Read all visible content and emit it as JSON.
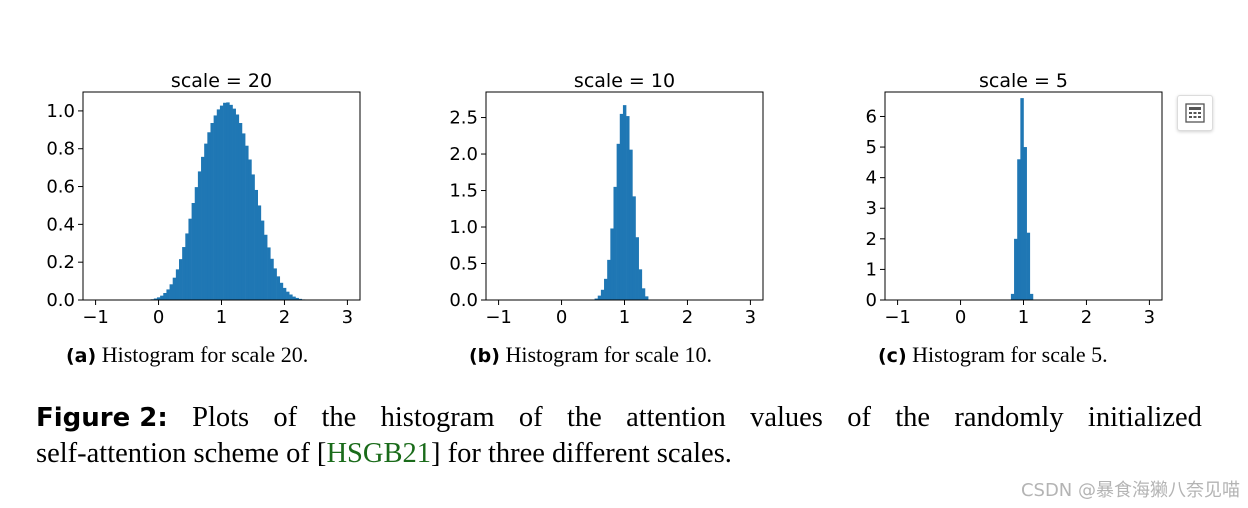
{
  "chart_data": [
    {
      "type": "bar",
      "title": "scale = 20",
      "xlim": [
        -1.2,
        3.2
      ],
      "ylim": [
        0,
        1.1
      ],
      "xticks": [
        -1,
        0,
        1,
        2,
        3
      ],
      "xtick_labels": [
        "−1",
        "0",
        "1",
        "2",
        "3"
      ],
      "yticks": [
        0,
        0.2,
        0.4,
        0.6,
        0.8,
        1.0
      ],
      "ytick_labels": [
        "0.0",
        "0.2",
        "0.4",
        "0.6",
        "0.8",
        "1.0"
      ],
      "x": [
        -0.1,
        -0.05,
        0.0,
        0.05,
        0.1,
        0.15,
        0.2,
        0.25,
        0.3,
        0.35,
        0.4,
        0.45,
        0.5,
        0.55,
        0.6,
        0.65,
        0.7,
        0.75,
        0.8,
        0.85,
        0.9,
        0.95,
        1.0,
        1.05,
        1.1,
        1.15,
        1.2,
        1.25,
        1.3,
        1.35,
        1.4,
        1.45,
        1.5,
        1.55,
        1.6,
        1.65,
        1.7,
        1.75,
        1.8,
        1.85,
        1.9,
        1.95,
        2.0,
        2.05,
        2.1,
        2.15,
        2.2,
        2.25,
        2.3,
        2.35,
        2.4
      ],
      "values": [
        0.004,
        0.008,
        0.014,
        0.023,
        0.037,
        0.056,
        0.083,
        0.118,
        0.162,
        0.216,
        0.28,
        0.352,
        0.43,
        0.513,
        0.597,
        0.68,
        0.757,
        0.827,
        0.887,
        0.936,
        0.976,
        1.008,
        1.028,
        1.043,
        1.045,
        1.032,
        1.012,
        0.981,
        0.936,
        0.881,
        0.816,
        0.743,
        0.664,
        0.582,
        0.5,
        0.42,
        0.345,
        0.278,
        0.218,
        0.167,
        0.125,
        0.091,
        0.064,
        0.044,
        0.029,
        0.018,
        0.011,
        0.006,
        0.003,
        0.002,
        0.001
      ],
      "color": "#1f77b4"
    },
    {
      "type": "bar",
      "title": "scale = 10",
      "xlim": [
        -1.2,
        3.2
      ],
      "ylim": [
        0,
        2.85
      ],
      "xticks": [
        -1,
        0,
        1,
        2,
        3
      ],
      "xtick_labels": [
        "−1",
        "0",
        "1",
        "2",
        "3"
      ],
      "yticks": [
        0,
        0.5,
        1.0,
        1.5,
        2.0,
        2.5
      ],
      "ytick_labels": [
        "0.0",
        "0.5",
        "1.0",
        "1.5",
        "2.0",
        "2.5"
      ],
      "x": [
        0.55,
        0.6,
        0.65,
        0.7,
        0.75,
        0.8,
        0.85,
        0.9,
        0.95,
        1.0,
        1.05,
        1.1,
        1.15,
        1.2,
        1.25,
        1.3,
        1.35
      ],
      "values": [
        0.02,
        0.06,
        0.14,
        0.29,
        0.55,
        0.98,
        1.55,
        2.14,
        2.55,
        2.67,
        2.52,
        2.06,
        1.42,
        0.86,
        0.42,
        0.16,
        0.05
      ],
      "color": "#1f77b4"
    },
    {
      "type": "bar",
      "title": "scale = 5",
      "xlim": [
        -1.2,
        3.2
      ],
      "ylim": [
        0,
        6.8
      ],
      "xticks": [
        -1,
        0,
        1,
        2,
        3
      ],
      "xtick_labels": [
        "−1",
        "0",
        "1",
        "2",
        "3"
      ],
      "yticks": [
        0,
        1,
        2,
        3,
        4,
        5,
        6
      ],
      "ytick_labels": [
        "0",
        "1",
        "2",
        "3",
        "4",
        "5",
        "6"
      ],
      "x": [
        0.825,
        0.875,
        0.925,
        0.975,
        1.025,
        1.075,
        1.125
      ],
      "values": [
        0.2,
        2.0,
        4.6,
        6.6,
        5.0,
        2.2,
        0.2
      ],
      "color": "#1f77b4"
    }
  ],
  "captions": [
    {
      "label": "(a)",
      "text": "Histogram for scale 20."
    },
    {
      "label": "(b)",
      "text": "Histogram for scale 10."
    },
    {
      "label": "(c)",
      "text": "Histogram for scale 5."
    }
  ],
  "figure_caption": {
    "label": "Figure 2:",
    "line1_words": [
      "Plots",
      "of",
      "the",
      "histogram",
      "of",
      "the",
      "attention",
      "values",
      "of",
      "the",
      "randomly",
      "initialized"
    ],
    "line2_before": "self-attention scheme of [",
    "citation": "HSGB21",
    "line2_after": "] for three different scales."
  },
  "watermark": "CSDN @暴食海獭八奈见喵",
  "icons": {
    "floating_button": "calculator-icon"
  }
}
